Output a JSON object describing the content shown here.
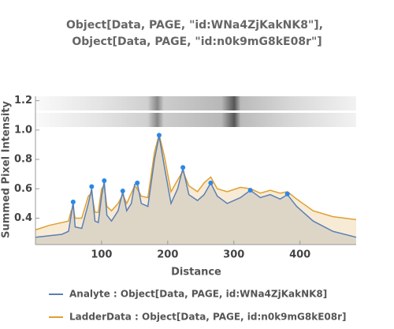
{
  "chart_data": {
    "type": "area",
    "title": "Object[Data, PAGE, \"id:WNa4ZjKakNK8\"],",
    "subtitle": "Object[Data, PAGE, \"id:n0k9mG8kE08r\"]",
    "x_label": "Distance",
    "y_label": "Summed Pixel Intensity",
    "x": [
      0,
      20,
      40,
      50,
      54,
      57,
      60,
      70,
      80,
      85,
      90,
      95,
      100,
      104,
      108,
      115,
      125,
      132,
      138,
      145,
      150,
      154,
      160,
      170,
      180,
      187,
      195,
      205,
      215,
      223,
      232,
      245,
      255,
      265,
      275,
      290,
      310,
      325,
      340,
      355,
      370,
      381,
      395,
      420,
      450,
      485
    ],
    "series": [
      {
        "name": "Analyte : Object[Data, PAGE, id:WNa4ZjKakNK8]",
        "color": "#5b7fb5",
        "fill": "#d8d2c4",
        "values": [
          0.27,
          0.28,
          0.29,
          0.31,
          0.42,
          0.51,
          0.34,
          0.33,
          0.5,
          0.6,
          0.38,
          0.37,
          0.55,
          0.65,
          0.42,
          0.38,
          0.45,
          0.58,
          0.45,
          0.5,
          0.63,
          0.64,
          0.5,
          0.48,
          0.8,
          0.96,
          0.75,
          0.5,
          0.6,
          0.74,
          0.56,
          0.52,
          0.56,
          0.64,
          0.55,
          0.5,
          0.54,
          0.59,
          0.54,
          0.56,
          0.53,
          0.56,
          0.48,
          0.38,
          0.31,
          0.27
        ]
      },
      {
        "name": "LadderData : Object[Data, PAGE, id:n0k9mG8kE08r]",
        "color": "#e0a030",
        "fill": "#f6e8cf",
        "values": [
          0.32,
          0.35,
          0.37,
          0.38,
          0.45,
          0.47,
          0.4,
          0.4,
          0.55,
          0.57,
          0.44,
          0.44,
          0.6,
          0.62,
          0.48,
          0.45,
          0.5,
          0.56,
          0.5,
          0.57,
          0.62,
          0.6,
          0.55,
          0.54,
          0.85,
          0.97,
          0.82,
          0.58,
          0.66,
          0.72,
          0.62,
          0.58,
          0.64,
          0.68,
          0.6,
          0.58,
          0.61,
          0.6,
          0.57,
          0.59,
          0.57,
          0.58,
          0.53,
          0.45,
          0.41,
          0.39
        ]
      }
    ],
    "peaks": {
      "color": "#2a88e8",
      "x": [
        57,
        85,
        104,
        132,
        154,
        187,
        223,
        265,
        325,
        381
      ],
      "values": [
        0.51,
        0.615,
        0.655,
        0.585,
        0.64,
        0.965,
        0.745,
        0.64,
        0.59,
        0.565
      ]
    },
    "xlim": [
      0,
      485
    ],
    "ylim": [
      0.22,
      1.23
    ],
    "xticks": [
      100,
      200,
      300,
      400
    ],
    "yticks": [
      0.4,
      0.6,
      0.8,
      {
        "value": 1,
        "label": "1.0"
      },
      1.2
    ]
  }
}
